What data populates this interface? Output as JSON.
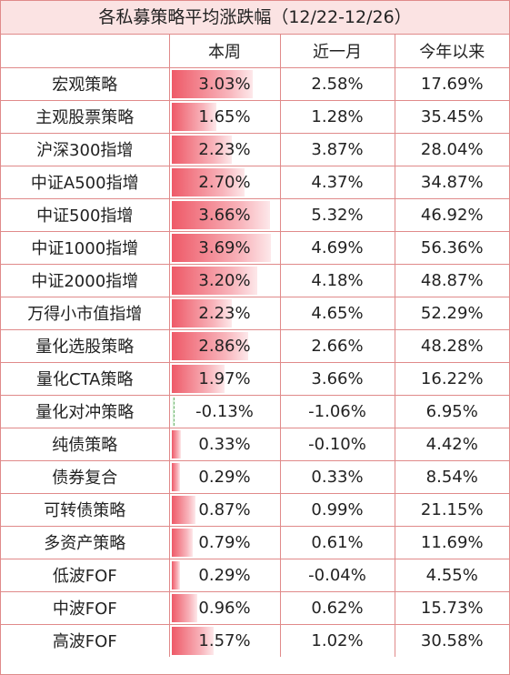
{
  "title": "各私募策略平均涨跌幅（12/22-12/26）",
  "headers": [
    "",
    "本周",
    "近一月",
    "今年以来"
  ],
  "bar_max_pct": 4.0,
  "rows": [
    {
      "name": "宏观策略",
      "week": "3.03%",
      "week_value": 3.03,
      "month": "2.58%",
      "ytd": "17.69%"
    },
    {
      "name": "主观股票策略",
      "week": "1.65%",
      "week_value": 1.65,
      "month": "1.28%",
      "ytd": "35.45%"
    },
    {
      "name": "沪深300指增",
      "week": "2.23%",
      "week_value": 2.23,
      "month": "3.87%",
      "ytd": "28.04%"
    },
    {
      "name": "中证A500指增",
      "week": "2.70%",
      "week_value": 2.7,
      "month": "4.37%",
      "ytd": "34.87%"
    },
    {
      "name": "中证500指增",
      "week": "3.66%",
      "week_value": 3.66,
      "month": "5.32%",
      "ytd": "46.92%"
    },
    {
      "name": "中证1000指增",
      "week": "3.69%",
      "week_value": 3.69,
      "month": "4.69%",
      "ytd": "56.36%"
    },
    {
      "name": "中证2000指增",
      "week": "3.20%",
      "week_value": 3.2,
      "month": "4.18%",
      "ytd": "48.87%"
    },
    {
      "name": "万得小市值指增",
      "week": "2.23%",
      "week_value": 2.23,
      "month": "4.65%",
      "ytd": "52.29%"
    },
    {
      "name": "量化选股策略",
      "week": "2.86%",
      "week_value": 2.86,
      "month": "2.66%",
      "ytd": "48.28%"
    },
    {
      "name": "量化CTA策略",
      "week": "1.97%",
      "week_value": 1.97,
      "month": "3.66%",
      "ytd": "16.22%"
    },
    {
      "name": "量化对冲策略",
      "week": "-0.13%",
      "week_value": -0.13,
      "month": "-1.06%",
      "ytd": "6.95%"
    },
    {
      "name": "纯债策略",
      "week": "0.33%",
      "week_value": 0.33,
      "month": "-0.10%",
      "ytd": "4.42%"
    },
    {
      "name": "债券复合",
      "week": "0.29%",
      "week_value": 0.29,
      "month": "0.33%",
      "ytd": "8.54%"
    },
    {
      "name": "可转债策略",
      "week": "0.87%",
      "week_value": 0.87,
      "month": "0.99%",
      "ytd": "21.15%"
    },
    {
      "name": "多资产策略",
      "week": "0.79%",
      "week_value": 0.79,
      "month": "0.61%",
      "ytd": "11.69%"
    },
    {
      "name": "低波FOF",
      "week": "0.29%",
      "week_value": 0.29,
      "month": "-0.04%",
      "ytd": "4.55%"
    },
    {
      "name": "中波FOF",
      "week": "0.96%",
      "week_value": 0.96,
      "month": "0.62%",
      "ytd": "15.73%"
    },
    {
      "name": "高波FOF",
      "week": "1.57%",
      "week_value": 1.57,
      "month": "1.02%",
      "ytd": "30.58%"
    }
  ]
}
